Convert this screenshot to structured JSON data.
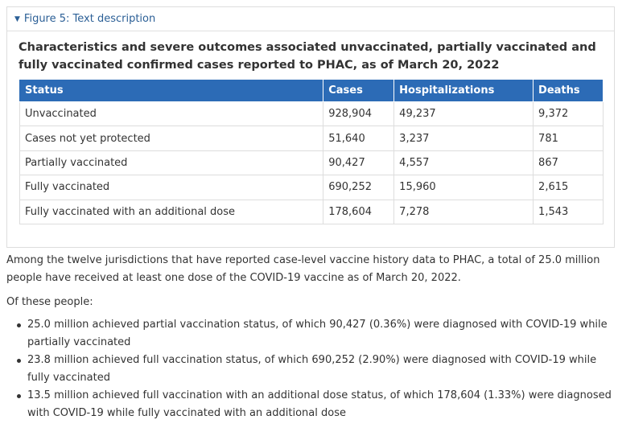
{
  "details": {
    "summary_label": "Figure 5: Text description",
    "title": "Characteristics and severe outcomes associated unvaccinated, partially vaccinated and fully vaccinated confirmed cases reported to PHAC, as of March 20, 2022"
  },
  "table": {
    "headers": [
      "Status",
      "Cases",
      "Hospitalizations",
      "Deaths"
    ],
    "rows": [
      [
        "Unvaccinated",
        "928,904",
        "49,237",
        "9,372"
      ],
      [
        "Cases not yet protected",
        "51,640",
        "3,237",
        "781"
      ],
      [
        "Partially vaccinated",
        "90,427",
        "4,557",
        "867"
      ],
      [
        "Fully vaccinated",
        "690,252",
        "15,960",
        "2,615"
      ],
      [
        "Fully vaccinated with an additional dose",
        "178,604",
        "7,278",
        "1,543"
      ]
    ]
  },
  "text": {
    "intro": "Among the twelve jurisdictions that have reported case-level vaccine history data to PHAC, a total of 25.0 million people have received at least one dose of the COVID-19 vaccine as of March 20, 2022.",
    "of_these": "Of these people:",
    "bullets": [
      "25.0 million achieved partial vaccination status, of which 90,427 (0.36%) were diagnosed with COVID-19 while partially vaccinated",
      "23.8 million achieved full vaccination status, of which 690,252 (2.90%) were diagnosed with COVID-19 while fully vaccinated",
      "13.5 million achieved full vaccination with an additional dose status, of which 178,604 (1.33%) were diagnosed with COVID-19 while fully vaccinated with an additional dose"
    ]
  },
  "colors": {
    "header_bg": "#2c6bb6",
    "link": "#2b5f96"
  }
}
